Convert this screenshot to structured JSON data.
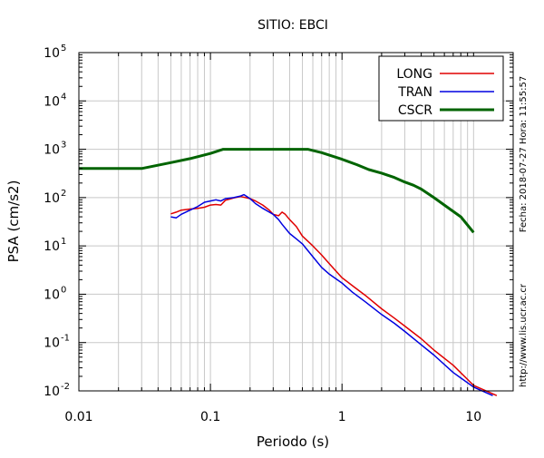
{
  "chart_data": {
    "type": "line",
    "title": "SITIO: EBCI",
    "xlabel": "Periodo (s)",
    "ylabel": "PSA (cm/s2)",
    "x_scale": "log",
    "y_scale": "log",
    "xlim": [
      0.01,
      20
    ],
    "ylim": [
      0.01,
      100000
    ],
    "x_ticks": [
      {
        "value": 0.01,
        "label": "0.01"
      },
      {
        "value": 0.1,
        "label": "0.1"
      },
      {
        "value": 1,
        "label": "1"
      },
      {
        "value": 10,
        "label": "10"
      }
    ],
    "y_ticks": [
      {
        "value": 0.01,
        "base": "10",
        "exp": "-2"
      },
      {
        "value": 0.1,
        "base": "10",
        "exp": "-1"
      },
      {
        "value": 1,
        "base": "10",
        "exp": "0"
      },
      {
        "value": 10,
        "base": "10",
        "exp": "1"
      },
      {
        "value": 100,
        "base": "10",
        "exp": "2"
      },
      {
        "value": 1000,
        "base": "10",
        "exp": "3"
      },
      {
        "value": 10000,
        "base": "10",
        "exp": "4"
      },
      {
        "value": 100000,
        "base": "10",
        "exp": "5"
      }
    ],
    "grid": true,
    "legend_position": "top-right",
    "series": [
      {
        "name": "LONG",
        "color": "#e00000",
        "x": [
          0.05,
          0.055,
          0.06,
          0.07,
          0.08,
          0.09,
          0.1,
          0.11,
          0.12,
          0.13,
          0.15,
          0.17,
          0.2,
          0.22,
          0.25,
          0.28,
          0.3,
          0.33,
          0.35,
          0.37,
          0.4,
          0.45,
          0.5,
          0.6,
          0.7,
          0.8,
          1.0,
          1.2,
          1.5,
          2.0,
          2.5,
          3.0,
          4.0,
          5.0,
          7.0,
          10.0,
          15.0
        ],
        "y": [
          46,
          50,
          55,
          58,
          60,
          63,
          70,
          72,
          70,
          88,
          98,
          105,
          95,
          85,
          70,
          55,
          45,
          42,
          50,
          45,
          35,
          25,
          16,
          10,
          6.5,
          4.3,
          2.2,
          1.5,
          0.95,
          0.5,
          0.32,
          0.22,
          0.12,
          0.07,
          0.034,
          0.013,
          0.008
        ]
      },
      {
        "name": "TRAN",
        "color": "#0000e0",
        "x": [
          0.05,
          0.055,
          0.06,
          0.07,
          0.08,
          0.09,
          0.1,
          0.11,
          0.12,
          0.13,
          0.15,
          0.17,
          0.18,
          0.2,
          0.22,
          0.25,
          0.28,
          0.3,
          0.33,
          0.35,
          0.4,
          0.45,
          0.5,
          0.6,
          0.7,
          0.8,
          1.0,
          1.2,
          1.5,
          2.0,
          2.5,
          3.0,
          4.0,
          5.0,
          7.0,
          10.0,
          14.0
        ],
        "y": [
          40,
          38,
          45,
          55,
          65,
          80,
          85,
          90,
          85,
          95,
          100,
          108,
          115,
          95,
          75,
          60,
          50,
          45,
          35,
          28,
          18,
          14,
          11,
          6.0,
          3.6,
          2.6,
          1.7,
          1.1,
          0.7,
          0.38,
          0.25,
          0.17,
          0.09,
          0.055,
          0.024,
          0.012,
          0.008
        ]
      },
      {
        "name": "CSCR",
        "color": "#006400",
        "x": [
          0.01,
          0.03,
          0.05,
          0.07,
          0.1,
          0.125,
          0.2,
          0.3,
          0.4,
          0.55,
          0.7,
          1.0,
          1.3,
          1.6,
          2.0,
          2.5,
          3.0,
          3.5,
          4.0,
          5.0,
          6.0,
          8.0,
          10.0
        ],
        "y": [
          400,
          400,
          530,
          640,
          820,
          1000,
          1000,
          1000,
          1000,
          1000,
          850,
          620,
          480,
          380,
          320,
          260,
          210,
          180,
          150,
          100,
          70,
          40,
          19
        ]
      }
    ]
  },
  "side_text": {
    "timestamp": "Fecha: 2018-07-27  Hora: 11:55:57",
    "url": "http://www.lis.ucr.ac.cr"
  }
}
